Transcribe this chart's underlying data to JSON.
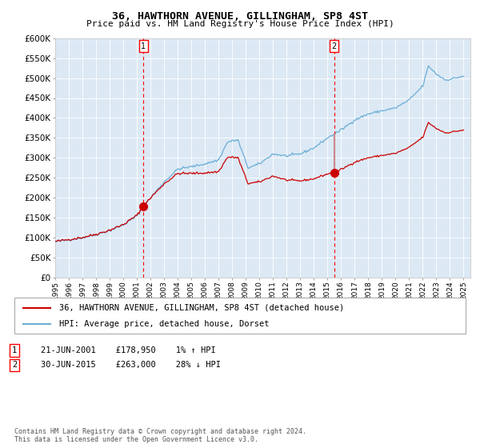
{
  "title": "36, HAWTHORN AVENUE, GILLINGHAM, SP8 4ST",
  "subtitle": "Price paid vs. HM Land Registry's House Price Index (HPI)",
  "legend_line1": "36, HAWTHORN AVENUE, GILLINGHAM, SP8 4ST (detached house)",
  "legend_line2": "HPI: Average price, detached house, Dorset",
  "sale1_price": 178950,
  "sale1_note": "21-JUN-2001    £178,950    1% ↑ HPI",
  "sale2_price": 263000,
  "sale2_note": "30-JUN-2015    £263,000    28% ↓ HPI",
  "footer": "Contains HM Land Registry data © Crown copyright and database right 2024.\nThis data is licensed under the Open Government Licence v3.0.",
  "hpi_color": "#6baed6",
  "price_color": "#cc0000",
  "plot_bg": "#dce9f5",
  "ylim": [
    0,
    600000
  ],
  "yticks": [
    0,
    50000,
    100000,
    150000,
    200000,
    250000,
    300000,
    350000,
    400000,
    450000,
    500000,
    550000,
    600000
  ]
}
